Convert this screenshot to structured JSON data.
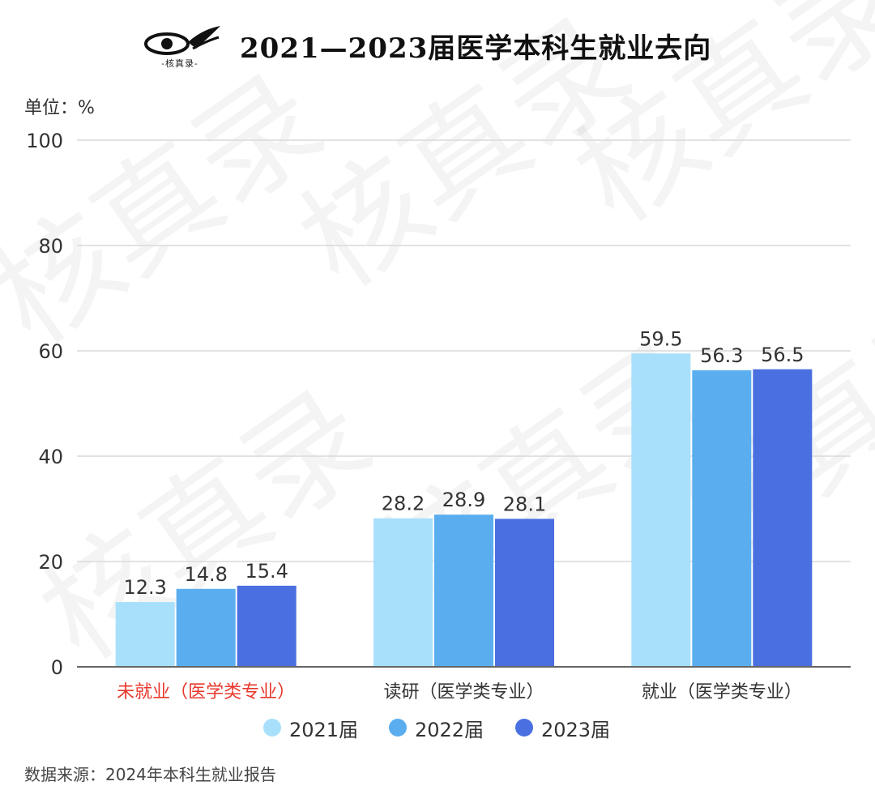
{
  "header": {
    "title": "2021—2023届医学本科生就业去向",
    "logo_text": "-核真录-"
  },
  "unit_label": "单位：%",
  "source_note": "数据来源：2024年本科生就业报告",
  "watermark_text": "核真录",
  "colors": {
    "series": [
      "#a8e0fb",
      "#5aaef0",
      "#4a6fe0"
    ],
    "highlight_category": "#e8382c",
    "gridline": "#d9d9d9",
    "axis": "#666666"
  },
  "chart_data": {
    "type": "bar",
    "categories": [
      "未就业（医学类专业）",
      "读研（医学类专业）",
      "就业（医学类专业）"
    ],
    "highlighted_category_index": 0,
    "series": [
      {
        "name": "2021届",
        "values": [
          12.3,
          28.2,
          59.5
        ]
      },
      {
        "name": "2022届",
        "values": [
          14.8,
          28.9,
          56.3
        ]
      },
      {
        "name": "2023届",
        "values": [
          15.4,
          28.1,
          56.5
        ]
      }
    ],
    "ylim": [
      0,
      100
    ],
    "yticks": [
      0,
      20,
      40,
      60,
      80,
      100
    ],
    "grid": true,
    "legend_position": "bottom"
  }
}
